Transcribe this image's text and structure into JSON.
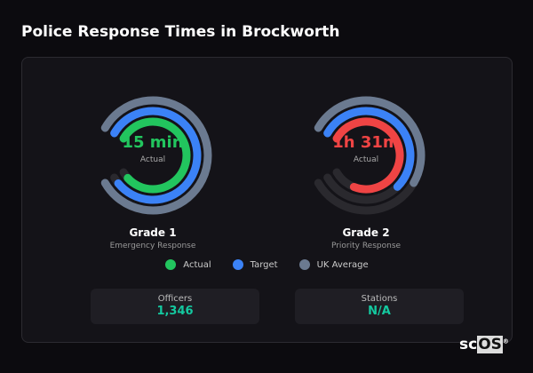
{
  "title": "Police Response Times in Brockworth",
  "colors": {
    "actual_g1": "#22c55e",
    "actual_g2": "#ef4444",
    "target": "#3b82f6",
    "uk_average": "#6b7a90",
    "track": "#2a292e",
    "stat_value": "#14c9a0"
  },
  "gauges": [
    {
      "name": "Grade 1",
      "description": "Emergency Response",
      "value": "15 min",
      "value_label": "Actual",
      "actual_color": "#22c55e",
      "fill_fraction": {
        "actual": 0.96,
        "target": 0.97,
        "uk_average": 1.0
      }
    },
    {
      "name": "Grade 2",
      "description": "Priority Response",
      "value": "1h 31m",
      "value_label": "Actual",
      "actual_color": "#ef4444",
      "fill_fraction": {
        "actual": 0.87,
        "target": 0.65,
        "uk_average": 0.6
      }
    }
  ],
  "legend": [
    {
      "label": "Actual",
      "color": "#22c55e"
    },
    {
      "label": "Target",
      "color": "#3b82f6"
    },
    {
      "label": "UK Average",
      "color": "#6b7a90"
    }
  ],
  "stats": [
    {
      "label": "Officers",
      "value": "1,346"
    },
    {
      "label": "Stations",
      "value": "N/A"
    }
  ],
  "logo": {
    "text_a": "sc",
    "text_b": "OS",
    "mark": "®"
  }
}
